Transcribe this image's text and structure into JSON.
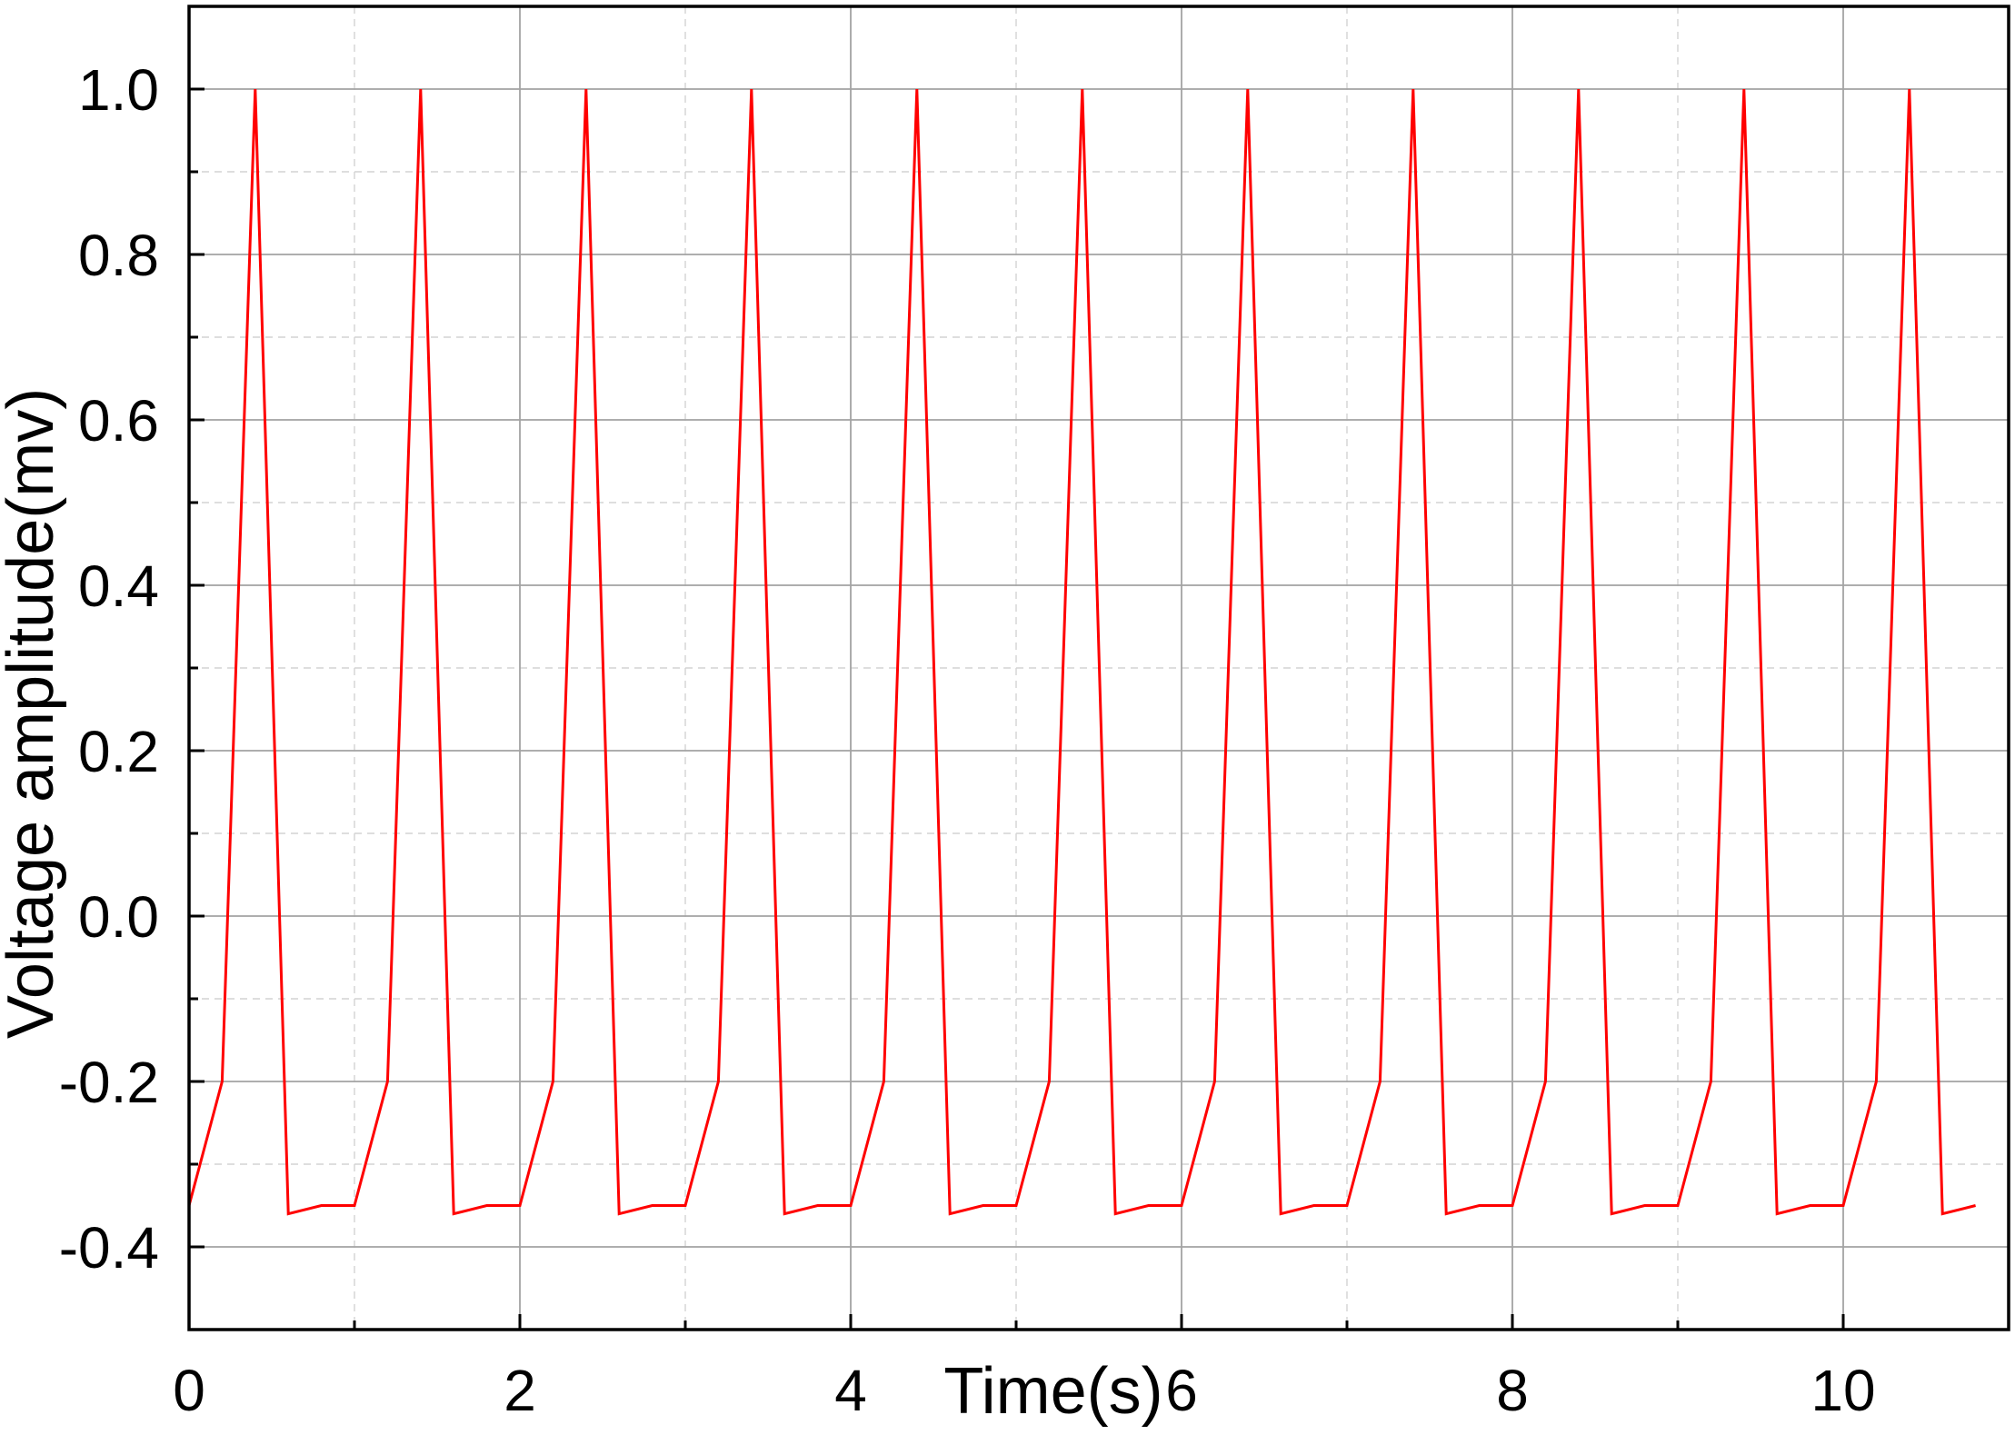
{
  "chart_data": {
    "type": "line",
    "xlabel": "Time(s)",
    "ylabel": "Voltage amplitude(mv)",
    "xlim": [
      0,
      11
    ],
    "ylim": [
      -0.5,
      1.1
    ],
    "x_ticks": [
      0,
      2,
      4,
      6,
      8,
      10
    ],
    "x_tick_labels": [
      "0",
      "2",
      "4",
      "6",
      "8",
      "10"
    ],
    "y_ticks": [
      -0.4,
      -0.2,
      0,
      0.2,
      0.4,
      0.6,
      0.8,
      1.0
    ],
    "y_tick_labels": [
      "-0.4",
      "-0.2",
      "0.0",
      "0.2",
      "0.4",
      "0.6",
      "0.8",
      "1.0"
    ],
    "grid": {
      "major": true,
      "minor": true
    },
    "x": [
      0,
      0.2,
      0.4,
      0.6,
      0.8,
      1,
      1.2,
      1.4,
      1.6,
      1.8,
      2,
      2.2,
      2.4,
      2.6,
      2.8,
      3,
      3.2,
      3.4,
      3.6,
      3.8,
      4,
      4.2,
      4.4,
      4.6,
      4.8,
      5,
      5.2,
      5.4,
      5.6,
      5.8,
      6,
      6.2,
      6.4,
      6.6,
      6.8,
      7,
      7.2,
      7.4,
      7.6,
      7.8,
      8,
      8.2,
      8.4,
      8.6,
      8.8,
      9,
      9.2,
      9.4,
      9.6,
      9.8,
      10,
      10.2,
      10.4,
      10.6,
      10.8
    ],
    "series": [
      {
        "color": "#ff0000",
        "values": [
          -0.35,
          -0.2,
          1.0,
          -0.36,
          -0.35,
          -0.35,
          -0.2,
          1.0,
          -0.36,
          -0.35,
          -0.35,
          -0.2,
          1.0,
          -0.36,
          -0.35,
          -0.35,
          -0.2,
          1.0,
          -0.36,
          -0.35,
          -0.35,
          -0.2,
          1.0,
          -0.36,
          -0.35,
          -0.35,
          -0.2,
          1.0,
          -0.36,
          -0.35,
          -0.35,
          -0.2,
          1.0,
          -0.36,
          -0.35,
          -0.35,
          -0.2,
          1.0,
          -0.36,
          -0.35,
          -0.35,
          -0.2,
          1.0,
          -0.36,
          -0.35,
          -0.35,
          -0.2,
          1.0,
          -0.36,
          -0.35,
          -0.35,
          -0.2,
          1.0,
          -0.36,
          -0.35
        ]
      }
    ]
  }
}
